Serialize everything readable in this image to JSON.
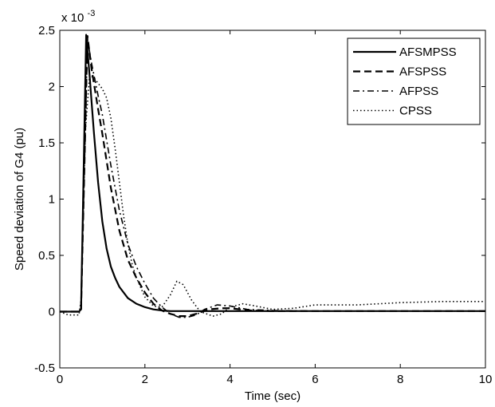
{
  "chart_data": {
    "type": "line",
    "title": "",
    "xlabel": "Time (sec)",
    "ylabel": "Speed deviation of G4 (pu)",
    "y_multiplier_label": "x 10",
    "y_multiplier_exponent": "-3",
    "xlim": [
      0,
      10
    ],
    "ylim": [
      -0.5,
      2.5
    ],
    "x_ticks": [
      0,
      2,
      4,
      6,
      8,
      10
    ],
    "x_tick_labels": [
      "0",
      "2",
      "4",
      "6",
      "8",
      "10"
    ],
    "y_ticks": [
      -0.5,
      0,
      0.5,
      1,
      1.5,
      2,
      2.5
    ],
    "y_tick_labels": [
      "-0.5",
      "0",
      "0.5",
      "1",
      "1.5",
      "2",
      "2.5"
    ],
    "grid": false,
    "legend_position": "top-right",
    "series": [
      {
        "name": "AFSMPSS",
        "style": "solid",
        "x": [
          0,
          0.45,
          0.5,
          0.62,
          0.7,
          0.8,
          0.9,
          1.0,
          1.1,
          1.2,
          1.3,
          1.4,
          1.6,
          1.8,
          2.0,
          2.2,
          2.4,
          2.6,
          3.0,
          4.0,
          5.0,
          6.0,
          8.0,
          10.0
        ],
        "y": [
          0,
          0,
          0.02,
          2.46,
          2.1,
          1.6,
          1.15,
          0.8,
          0.56,
          0.4,
          0.3,
          0.22,
          0.12,
          0.07,
          0.04,
          0.02,
          0.01,
          0.005,
          0.005,
          0.005,
          0.005,
          0.005,
          0.005,
          0.005
        ]
      },
      {
        "name": "AFSPSS",
        "style": "dashed",
        "x": [
          0,
          0.45,
          0.5,
          0.65,
          0.75,
          0.9,
          1.0,
          1.2,
          1.4,
          1.6,
          1.8,
          2.0,
          2.2,
          2.4,
          2.6,
          2.8,
          3.0,
          3.2,
          3.5,
          3.8,
          4.0,
          4.5,
          5.0,
          6.0,
          8.0,
          10.0
        ],
        "y": [
          0,
          0,
          0.02,
          2.45,
          2.15,
          1.8,
          1.58,
          1.1,
          0.72,
          0.46,
          0.3,
          0.17,
          0.07,
          0.01,
          -0.02,
          -0.04,
          -0.04,
          -0.02,
          0.02,
          0.03,
          0.03,
          0.01,
          0.005,
          0.005,
          0.005,
          0.005
        ]
      },
      {
        "name": "AFPSS",
        "style": "dashdot",
        "x": [
          0,
          0.45,
          0.5,
          0.65,
          0.75,
          0.9,
          1.0,
          1.2,
          1.4,
          1.6,
          1.8,
          2.0,
          2.2,
          2.4,
          2.6,
          2.8,
          3.0,
          3.2,
          3.4,
          3.7,
          4.0,
          4.4,
          5.0,
          6.0,
          8.0,
          10.0
        ],
        "y": [
          0,
          0,
          0.02,
          2.42,
          2.2,
          1.92,
          1.75,
          1.3,
          0.9,
          0.6,
          0.4,
          0.25,
          0.12,
          0.04,
          -0.02,
          -0.05,
          -0.05,
          -0.03,
          0.02,
          0.06,
          0.05,
          0.02,
          0.01,
          0.005,
          0.005,
          0.005
        ]
      },
      {
        "name": "CPSS",
        "style": "dotted",
        "x": [
          0,
          0.2,
          0.45,
          0.5,
          0.6,
          0.7,
          0.8,
          0.9,
          1.0,
          1.1,
          1.2,
          1.3,
          1.4,
          1.5,
          1.6,
          1.7,
          1.8,
          2.0,
          2.2,
          2.4,
          2.6,
          2.75,
          2.9,
          3.1,
          3.3,
          3.6,
          3.8,
          4.0,
          4.3,
          4.6,
          5.0,
          5.5,
          6.0,
          7.0,
          8.0,
          9.0,
          10.0
        ],
        "y": [
          0,
          -0.03,
          -0.03,
          0.1,
          1.6,
          2.1,
          2.08,
          2.03,
          1.98,
          1.9,
          1.72,
          1.45,
          1.15,
          0.85,
          0.6,
          0.42,
          0.3,
          0.13,
          0.05,
          0.04,
          0.15,
          0.27,
          0.24,
          0.1,
          0.0,
          -0.04,
          -0.02,
          0.04,
          0.07,
          0.05,
          0.02,
          0.03,
          0.06,
          0.06,
          0.08,
          0.09,
          0.09
        ]
      }
    ]
  }
}
